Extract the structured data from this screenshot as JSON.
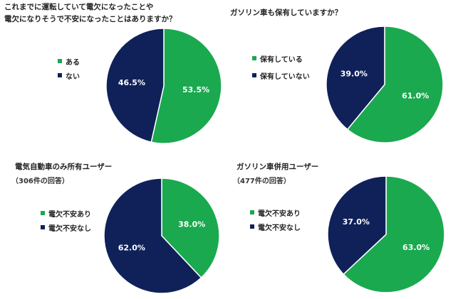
{
  "colors": {
    "green": "#1aa94f",
    "navy": "#0f2158"
  },
  "chart_data": [
    {
      "type": "pie",
      "title": [
        "これまでに運転していて電欠になったことや",
        "電欠になりそうで不安になったことはありますか？"
      ],
      "subtitle": "",
      "slices": [
        {
          "label": "ある",
          "value": 53.5,
          "value_label": "53.5%",
          "color": "#1aa94f"
        },
        {
          "label": "ない",
          "value": 46.5,
          "value_label": "46.5%",
          "color": "#0f2158"
        }
      ]
    },
    {
      "type": "pie",
      "title": [
        "ガソリン車も保有していますか？"
      ],
      "subtitle": "",
      "slices": [
        {
          "label": "保有している",
          "value": 61.0,
          "value_label": "61.0%",
          "color": "#1aa94f"
        },
        {
          "label": "保有していない",
          "value": 39.0,
          "value_label": "39.0%",
          "color": "#0f2158"
        }
      ]
    },
    {
      "type": "pie",
      "title": [
        "電気自動車のみ所有ユーザー"
      ],
      "subtitle": "（306件の回答）",
      "slices": [
        {
          "label": "電欠不安あり",
          "value": 38.0,
          "value_label": "38.0%",
          "color": "#1aa94f"
        },
        {
          "label": "電欠不安なし",
          "value": 62.0,
          "value_label": "62.0%",
          "color": "#0f2158"
        }
      ]
    },
    {
      "type": "pie",
      "title": [
        "ガソリン車併用ユーザー"
      ],
      "subtitle": "（477件の回答）",
      "slices": [
        {
          "label": "電欠不安あり",
          "value": 63.0,
          "value_label": "63.0%",
          "color": "#1aa94f"
        },
        {
          "label": "電欠不安なし",
          "value": 37.0,
          "value_label": "37.0%",
          "color": "#0f2158"
        }
      ]
    }
  ]
}
